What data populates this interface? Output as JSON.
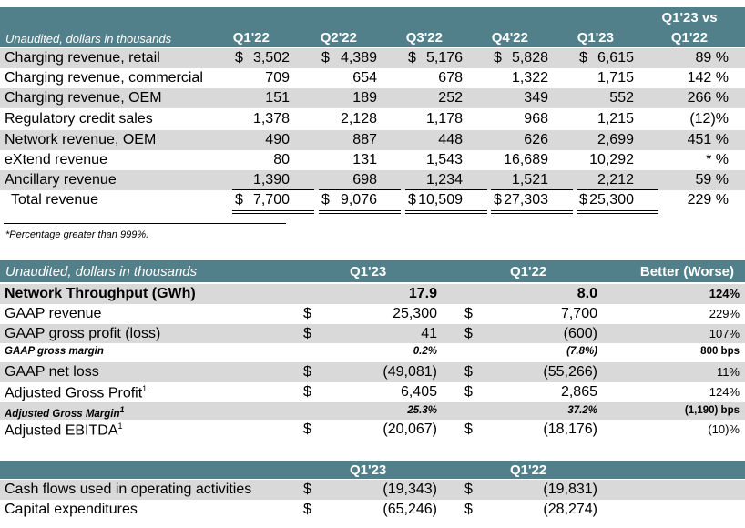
{
  "table1": {
    "subtitle": "Unaudited, dollars in thousands",
    "comparison_header": {
      "line1": "Q1'23 vs",
      "line2": "Q1'22"
    },
    "columns": [
      "Q1'22",
      "Q2'22",
      "Q3'22",
      "Q4'22",
      "Q1'23"
    ],
    "rows": [
      {
        "label": "Charging revenue, retail",
        "dollar": "$",
        "values": [
          "3,502",
          "4,389",
          "5,176",
          "5,828",
          "6,615"
        ],
        "change": "89 %"
      },
      {
        "label": "Charging revenue, commercial",
        "dollar": "",
        "values": [
          "709",
          "654",
          "678",
          "1,322",
          "1,715"
        ],
        "change": "142 %"
      },
      {
        "label": "Charging revenue, OEM",
        "dollar": "",
        "values": [
          "151",
          "189",
          "252",
          "349",
          "552"
        ],
        "change": "266 %"
      },
      {
        "label": "Regulatory credit sales",
        "dollar": "",
        "values": [
          "1,378",
          "2,128",
          "1,178",
          "968",
          "1,215"
        ],
        "change": "(12)%"
      },
      {
        "label": "Network revenue, OEM",
        "dollar": "",
        "values": [
          "490",
          "887",
          "448",
          "626",
          "2,699"
        ],
        "change": "451 %"
      },
      {
        "label": "eXtend revenue",
        "dollar": "",
        "values": [
          "80",
          "131",
          "1,543",
          "16,689",
          "10,292"
        ],
        "change": "* %"
      },
      {
        "label": "Ancillary revenue",
        "dollar": "",
        "values": [
          "1,390",
          "698",
          "1,234",
          "1,521",
          "2,212"
        ],
        "change": "59 %"
      },
      {
        "label": "Total revenue",
        "dollar": "$",
        "values": [
          "7,700",
          "9,076",
          "10,509",
          "27,303",
          "25,300"
        ],
        "change": "229 %"
      }
    ],
    "footnote": "*Percentage greater than 999%."
  },
  "table2": {
    "subtitle": "Unaudited, dollars in thousands",
    "col1": "Q1'23",
    "col2": "Q1'22",
    "col3": "Better (Worse)",
    "rows": [
      {
        "label": "Network Throughput (GWh)",
        "d1": "",
        "v1": "17.9",
        "d2": "",
        "v2": "8.0",
        "change": "124%",
        "style": "bold"
      },
      {
        "label": "GAAP revenue",
        "d1": "$",
        "v1": "25,300",
        "d2": "$",
        "v2": "7,700",
        "change": "229%",
        "style": "normal"
      },
      {
        "label": "GAAP gross profit (loss)",
        "d1": "$",
        "v1": "41",
        "d2": "$",
        "v2": "(600)",
        "change": "107%",
        "style": "normal"
      },
      {
        "label": "GAAP gross margin",
        "d1": "",
        "v1": "0.2%",
        "d2": "",
        "v2": "(7.8%)",
        "change": "800 bps",
        "style": "small"
      },
      {
        "label": "GAAP net loss",
        "d1": "$",
        "v1": "(49,081)",
        "d2": "$",
        "v2": "(55,266)",
        "change": "11%",
        "style": "normal"
      },
      {
        "label": "Adjusted Gross Profit",
        "sup": "1",
        "d1": "$",
        "v1": "6,405",
        "d2": "$",
        "v2": "2,865",
        "change": "124%",
        "style": "normal"
      },
      {
        "label": "Adjusted Gross Margin",
        "sup": "1",
        "d1": "",
        "v1": "25.3%",
        "d2": "",
        "v2": "37.2%",
        "change": "(1,190) bps",
        "style": "small"
      },
      {
        "label": "Adjusted EBITDA",
        "sup": "1",
        "d1": "$",
        "v1": "(20,067)",
        "d2": "$",
        "v2": "(18,176)",
        "change": "(10)%",
        "style": "normal"
      }
    ]
  },
  "table3": {
    "col1": "Q1'23",
    "col2": "Q1'22",
    "rows": [
      {
        "label": "Cash flows used in operating activities",
        "d1": "$",
        "v1": "(19,343)",
        "d2": "$",
        "v2": "(19,831)"
      },
      {
        "label": "Capital expenditures",
        "d1": "$",
        "v1": "(65,246)",
        "d2": "$",
        "v2": "(28,274)"
      }
    ]
  }
}
